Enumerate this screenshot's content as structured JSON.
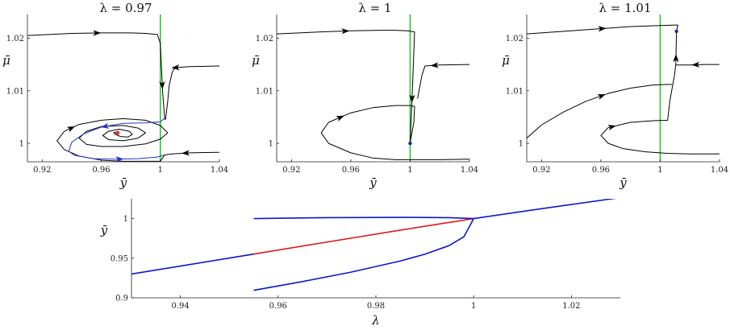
{
  "colors": {
    "trajectory": "#000000",
    "unstable_cycle": "#2233cc",
    "nullcline": "#22c322",
    "equilibrium": "#d23c28",
    "fixed_point": "#1a2a8c",
    "stable_branch": "#0b18c8",
    "unstable_branch": "#e01818"
  },
  "chart_data": [
    {
      "type": "line",
      "title": "λ = 0.97",
      "xlabel": "ȳ",
      "ylabel": "μ̄",
      "xlim": [
        0.91,
        1.04
      ],
      "ylim": [
        0.9965,
        1.0245
      ],
      "xticks": [
        "0.92",
        "0.96",
        "1",
        "1.04"
      ],
      "yticks": [
        "1",
        "1.01",
        "1.02"
      ],
      "vertical_line_x": 1.0,
      "equilibrium": [
        0.971,
        1.002
      ],
      "series": [
        {
          "role": "trajectory",
          "arrows": [
            0.5
          ],
          "x": [
            0.91,
            0.94,
            0.96,
            0.98,
            0.99,
            0.998,
            1.0
          ],
          "y": [
            1.0205,
            1.0209,
            1.021,
            1.021,
            1.0209,
            1.0207,
            1.019
          ]
        },
        {
          "role": "trajectory",
          "arrows": [
            0.55
          ],
          "x": [
            1.0,
            1.0015,
            1.003
          ],
          "y": [
            1.019,
            1.01,
            1.0045
          ]
        },
        {
          "role": "trajectory",
          "arrows": [
            0.45
          ],
          "x": [
            1.04,
            1.02,
            1.01,
            1.008,
            1.006,
            1.005,
            1.0035
          ],
          "y": [
            1.0147,
            1.0146,
            1.0144,
            1.0135,
            1.011,
            1.008,
            1.0045
          ]
        },
        {
          "role": "trajectory",
          "arrows": [
            0.62
          ],
          "x": [
            1.04,
            1.02,
            1.008,
            1.003
          ],
          "y": [
            0.9983,
            0.9982,
            0.998,
            0.9978
          ]
        },
        {
          "role": "trajectory",
          "arrows": [
            0.27
          ],
          "x": [
            1.003,
            1.0,
            0.99,
            0.975,
            0.96,
            0.945,
            0.935,
            0.93,
            0.935,
            0.945,
            0.96,
            0.975,
            0.99,
            1.0,
            1.005,
            1.0,
            0.99,
            0.975,
            0.96,
            0.95,
            0.945,
            0.95,
            0.96,
            0.975,
            0.985,
            0.99,
            0.985,
            0.975,
            0.965,
            0.961,
            0.965,
            0.972,
            0.979,
            0.981,
            0.978,
            0.973,
            0.969,
            0.9685,
            0.971
          ],
          "y": [
            0.9978,
            0.9966,
            0.9966,
            0.9966,
            0.9968,
            0.9976,
            0.9988,
            1.0005,
            1.0023,
            1.0036,
            1.0044,
            1.0047,
            1.0044,
            1.0034,
            1.002,
            1.0008,
            0.9999,
            0.9994,
            0.9994,
            0.9998,
            1.001,
            1.0023,
            1.0032,
            1.0034,
            1.0029,
            1.002,
            1.001,
            1.0005,
            1.0007,
            1.0015,
            1.0023,
            1.0027,
            1.0023,
            1.0017,
            1.0012,
            1.0013,
            1.0018,
            1.0021,
            1.002
          ]
        },
        {
          "role": "unstable_cycle",
          "arrows": [
            0.3,
            0.78
          ],
          "x": [
            1.003,
            1.0,
            0.99,
            0.975,
            0.96,
            0.948,
            0.94,
            0.938,
            0.942,
            0.955,
            0.97,
            0.985,
            0.998,
            1.003
          ],
          "y": [
            1.0048,
            1.0041,
            1.0039,
            1.0038,
            1.0031,
            1.0018,
            1.0002,
            0.9985,
            0.9977,
            0.9971,
            0.997,
            0.9971,
            0.9974,
            0.9978
          ]
        }
      ]
    },
    {
      "type": "line",
      "title": "λ = 1",
      "xlabel": "ȳ",
      "ylabel": "μ̄",
      "xlim": [
        0.91,
        1.04
      ],
      "ylim": [
        0.9965,
        1.0245
      ],
      "xticks": [
        "0.92",
        "0.96",
        "1",
        "1.04"
      ],
      "yticks": [
        "1",
        "1.01",
        "1.02"
      ],
      "vertical_line_x": 1.0,
      "fixed_point": [
        1.0,
        1.0
      ],
      "series": [
        {
          "role": "trajectory",
          "arrows": [
            0.5
          ],
          "x": [
            0.91,
            0.94,
            0.96,
            0.98,
            0.99,
            0.998,
            1.003
          ],
          "y": [
            1.0208,
            1.0212,
            1.0214,
            1.0215,
            1.0215,
            1.0214,
            1.0212
          ]
        },
        {
          "role": "trajectory",
          "arrows": [
            0.6
          ],
          "x": [
            1.003,
            1.0015,
            1.0
          ],
          "y": [
            1.0212,
            1.01,
            1.0
          ]
        },
        {
          "role": "trajectory",
          "arrows": [
            0.45
          ],
          "x": [
            1.04,
            1.02,
            1.01,
            1.008,
            1.006,
            1.005
          ],
          "y": [
            1.015,
            1.0149,
            1.0147,
            1.013,
            1.01,
            1.0085
          ]
        },
        {
          "role": "trajectory",
          "arrows": [
            0.62
          ],
          "x": [
            1.04,
            1.02,
            1.005,
            1.0,
            0.99,
            0.975,
            0.96,
            0.945,
            0.94,
            0.945,
            0.96,
            0.975,
            0.99,
            1.0,
            1.003,
            1.0025,
            1.0
          ],
          "y": [
            0.997,
            0.9969,
            0.9969,
            0.9969,
            0.9969,
            0.9972,
            0.9982,
            1.0,
            1.002,
            1.004,
            1.0058,
            1.0068,
            1.0072,
            1.0072,
            1.007,
            1.004,
            1.0002
          ]
        }
      ]
    },
    {
      "type": "line",
      "title": "λ = 1.01",
      "xlabel": "ȳ",
      "ylabel": "μ̄",
      "xlim": [
        0.91,
        1.04
      ],
      "ylim": [
        0.9965,
        1.0245
      ],
      "xticks": [
        "0.92",
        "0.96",
        "1",
        "1.04"
      ],
      "yticks": [
        "1",
        "1.01",
        "1.02"
      ],
      "vertical_line_x": 1.0,
      "fixed_point": [
        1.011,
        1.0213
      ],
      "series": [
        {
          "role": "trajectory",
          "arrows": [
            0.5
          ],
          "x": [
            0.91,
            0.94,
            0.96,
            0.98,
            1.0,
            1.01,
            1.012
          ],
          "y": [
            1.0208,
            1.0214,
            1.0218,
            1.0222,
            1.0224,
            1.0225,
            1.0225
          ]
        },
        {
          "role": "trajectory",
          "arrows": [],
          "x": [
            1.012,
            1.0115,
            1.011
          ],
          "y": [
            1.0225,
            1.022,
            1.0213
          ]
        },
        {
          "role": "trajectory",
          "arrows": [
            0.55
          ],
          "x": [
            1.04,
            1.03,
            1.02,
            1.0105
          ],
          "y": [
            1.015,
            1.015,
            1.0149,
            1.0149
          ]
        },
        {
          "role": "trajectory",
          "arrows": [
            0.5
          ],
          "x": [
            1.0085,
            1.0097,
            1.0105,
            1.011
          ],
          "y": [
            1.0112,
            1.013,
            1.015,
            1.0213
          ]
        },
        {
          "role": "trajectory",
          "arrows": [
            0.55
          ],
          "x": [
            0.91,
            0.92,
            0.935,
            0.95,
            0.965,
            0.98,
            0.995,
            1.005,
            1.008
          ],
          "y": [
            1.001,
            1.0035,
            1.006,
            1.008,
            1.0095,
            1.0105,
            1.0111,
            1.0112,
            1.0112
          ]
        },
        {
          "role": "trajectory",
          "arrows": [
            0.6
          ],
          "x": [
            1.04,
            1.02,
            1.005,
            0.99,
            0.975,
            0.965,
            0.96,
            0.965,
            0.98,
            0.995,
            1.005,
            1.0065,
            1.0085
          ],
          "y": [
            0.998,
            0.998,
            0.9981,
            0.9984,
            0.999,
            1.0,
            1.0015,
            1.003,
            1.004,
            1.0043,
            1.0044,
            1.008,
            1.0112
          ]
        }
      ]
    },
    {
      "type": "line",
      "title": "",
      "xlabel": "λ",
      "ylabel": "ȳ",
      "xlim": [
        0.93,
        1.03
      ],
      "ylim": [
        0.9,
        1.025
      ],
      "xticks": [
        "0.94",
        "0.96",
        "0.98",
        "1",
        "1.02"
      ],
      "yticks": [
        "0.9",
        "0.95",
        "1"
      ],
      "series": [
        {
          "role": "stable_branch",
          "x": [
            0.93,
            0.955
          ],
          "y": [
            0.93,
            0.9552
          ]
        },
        {
          "role": "unstable_branch",
          "x": [
            0.955,
            0.97,
            0.985,
            1.0
          ],
          "y": [
            0.9552,
            0.9704,
            0.9854,
            1.0
          ]
        },
        {
          "role": "stable_branch",
          "x": [
            1.0,
            1.015,
            1.03
          ],
          "y": [
            1.0,
            1.0135,
            1.0265
          ]
        },
        {
          "role": "stable_branch",
          "x": [
            0.955,
            0.97,
            0.985,
            0.995,
            1.0
          ],
          "y": [
            1.0,
            1.0012,
            1.0016,
            1.0012,
            1.0
          ]
        },
        {
          "role": "stable_branch",
          "x": [
            0.955,
            0.965,
            0.975,
            0.985,
            0.99,
            0.995,
            0.998,
            1.0
          ],
          "y": [
            0.9095,
            0.9205,
            0.9325,
            0.9465,
            0.955,
            0.966,
            0.977,
            1.0
          ]
        }
      ]
    }
  ]
}
